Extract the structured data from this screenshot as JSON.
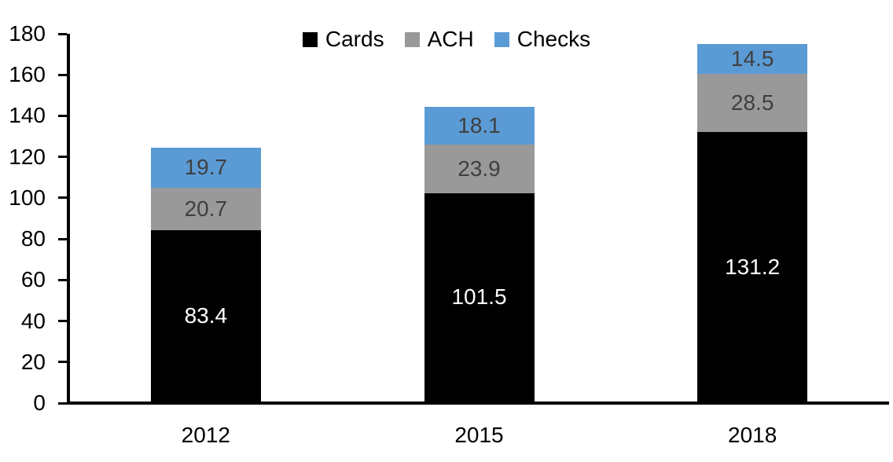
{
  "chart_data": {
    "type": "bar",
    "stacked": true,
    "title": "",
    "xlabel": "",
    "ylabel": "",
    "categories": [
      "2012",
      "2015",
      "2018"
    ],
    "series": [
      {
        "name": "Cards",
        "color": "#000000",
        "label_color": "#ffffff",
        "values": [
          83.4,
          101.5,
          131.2
        ]
      },
      {
        "name": "ACH",
        "color": "#999999",
        "label_color": "#3f3f3f",
        "values": [
          20.7,
          23.9,
          28.5
        ]
      },
      {
        "name": "Checks",
        "color": "#5b9bd5",
        "label_color": "#3f3f3f",
        "values": [
          19.7,
          18.1,
          14.5
        ]
      }
    ],
    "ylim": [
      0,
      180
    ],
    "ytick_step": 20,
    "grid": false,
    "legend_position": "top-center",
    "legend_order": [
      "Cards",
      "ACH",
      "Checks"
    ]
  }
}
